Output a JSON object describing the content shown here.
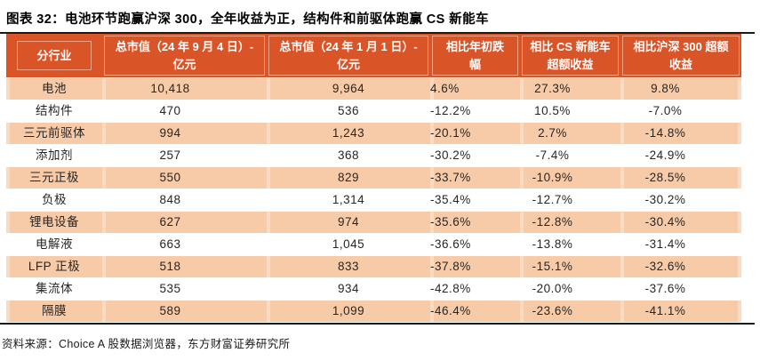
{
  "title": "图表 32：电池环节跑赢沪深 300，全年收益为正，结构件和前驱体跑赢 CS 新能车",
  "source": "资料来源：Choice A 股数据浏览器，东方财富证券研究所",
  "colors": {
    "header_bg": "#D95427",
    "header_grid_line": "#FBE2CF",
    "row_alt_bg": "#F7CBA8",
    "row_separator_strip": "#FADBC1",
    "rule_line": "#1A1A1A",
    "header_text": "#FFFFFF",
    "body_text": "#262626"
  },
  "table": {
    "headers": [
      {
        "line1": "分行业",
        "line2": ""
      },
      {
        "line1": "总市值（24 年 9 月 4 日）-",
        "line2": "亿元"
      },
      {
        "line1": "总市值（24 年 1 月 1 日）-",
        "line2": "亿元"
      },
      {
        "line1": "相比年初跌",
        "line2": "幅"
      },
      {
        "line1": "相比 CS 新能车",
        "line2": "超额收益"
      },
      {
        "line1": "相比沪深 300 超额",
        "line2": "收益"
      }
    ],
    "rows": [
      {
        "label": "电池",
        "cap_sep4": "10,418",
        "cap_jan1": "9,964",
        "ytd_change": "4.6%",
        "vs_cs_nev": "27.3%",
        "vs_hs300": "9.8%"
      },
      {
        "label": "结构件",
        "cap_sep4": "470",
        "cap_jan1": "536",
        "ytd_change": "-12.2%",
        "vs_cs_nev": "10.5%",
        "vs_hs300": "-7.0%"
      },
      {
        "label": "三元前驱体",
        "cap_sep4": "994",
        "cap_jan1": "1,243",
        "ytd_change": "-20.1%",
        "vs_cs_nev": "2.7%",
        "vs_hs300": "-14.8%"
      },
      {
        "label": "添加剂",
        "cap_sep4": "257",
        "cap_jan1": "368",
        "ytd_change": "-30.2%",
        "vs_cs_nev": "-7.4%",
        "vs_hs300": "-24.9%"
      },
      {
        "label": "三元正极",
        "cap_sep4": "550",
        "cap_jan1": "829",
        "ytd_change": "-33.7%",
        "vs_cs_nev": "-10.9%",
        "vs_hs300": "-28.5%"
      },
      {
        "label": "负极",
        "cap_sep4": "848",
        "cap_jan1": "1,314",
        "ytd_change": "-35.4%",
        "vs_cs_nev": "-12.7%",
        "vs_hs300": "-30.2%"
      },
      {
        "label": "锂电设备",
        "cap_sep4": "627",
        "cap_jan1": "974",
        "ytd_change": "-35.6%",
        "vs_cs_nev": "-12.8%",
        "vs_hs300": "-30.4%"
      },
      {
        "label": "电解液",
        "cap_sep4": "663",
        "cap_jan1": "1,045",
        "ytd_change": "-36.6%",
        "vs_cs_nev": "-13.8%",
        "vs_hs300": "-31.4%"
      },
      {
        "label": "LFP 正极",
        "cap_sep4": "518",
        "cap_jan1": "833",
        "ytd_change": "-37.8%",
        "vs_cs_nev": "-15.1%",
        "vs_hs300": "-32.6%"
      },
      {
        "label": "集流体",
        "cap_sep4": "535",
        "cap_jan1": "934",
        "ytd_change": "-42.8%",
        "vs_cs_nev": "-20.0%",
        "vs_hs300": "-37.6%"
      },
      {
        "label": "隔膜",
        "cap_sep4": "589",
        "cap_jan1": "1,099",
        "ytd_change": "-46.4%",
        "vs_cs_nev": "-23.6%",
        "vs_hs300": "-41.1%"
      }
    ]
  }
}
